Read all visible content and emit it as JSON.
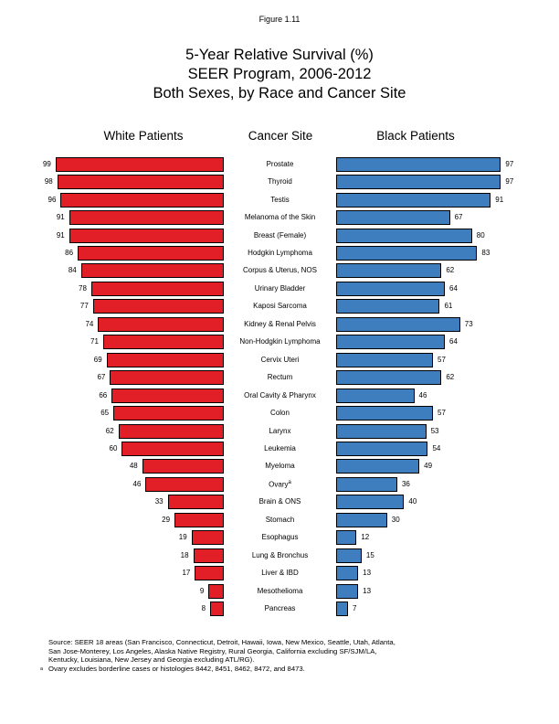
{
  "figure_label": "Figure 1.11",
  "title_lines": [
    "5-Year Relative Survival (%)",
    "SEER Program, 2006-2012",
    "Both Sexes, by Race and Cancer Site"
  ],
  "column_headers": {
    "white": "White Patients",
    "site": "Cancer Site",
    "black": "Black Patients"
  },
  "colors": {
    "white_bar": "#e21f26",
    "black_bar": "#3e7dbe",
    "bar_border": "#000000"
  },
  "chart_data": {
    "type": "bar",
    "subtype": "diverging-horizontal",
    "title": "5-Year Relative Survival (%), SEER Program, 2006-2012, Both Sexes, by Race and Cancer Site",
    "categories": [
      "Prostate",
      "Thyroid",
      "Testis",
      "Melanoma of the Skin",
      "Breast (Female)",
      "Hodgkin Lymphoma",
      "Corpus & Uterus, NOS",
      "Urinary Bladder",
      "Kaposi Sarcoma",
      "Kidney & Renal Pelvis",
      "Non-Hodgkin Lymphoma",
      "Cervix Uteri",
      "Rectum",
      "Oral Cavity & Pharynx",
      "Colon",
      "Larynx",
      "Leukemia",
      "Myeloma",
      "Ovary",
      "Brain & ONS",
      "Stomach",
      "Esophagus",
      "Lung & Bronchus",
      "Liver & IBD",
      "Mesothelioma",
      "Pancreas"
    ],
    "series": [
      {
        "name": "White Patients",
        "values": [
          99,
          98,
          96,
          91,
          91,
          86,
          84,
          78,
          77,
          74,
          71,
          69,
          67,
          66,
          65,
          62,
          60,
          48,
          46,
          33,
          29,
          19,
          18,
          17,
          9,
          8
        ]
      },
      {
        "name": "Black Patients",
        "values": [
          97,
          97,
          91,
          67,
          80,
          83,
          62,
          64,
          61,
          73,
          64,
          57,
          62,
          46,
          57,
          53,
          54,
          49,
          36,
          40,
          30,
          12,
          15,
          13,
          13,
          7
        ]
      }
    ],
    "xlim": [
      0,
      100
    ],
    "value_labels": true,
    "legend": "none",
    "grid": false,
    "footnote_marker": "a",
    "footnote_category": "Ovary"
  },
  "source_lines": [
    "Source: SEER 18 areas (San Francisco, Connecticut, Detroit, Hawaii, Iowa, New Mexico, Seattle, Utah, Atlanta,",
    "San Jose-Monterey, Los Angeles, Alaska Native Registry, Rural Georgia, California excluding SF/SJM/LA,",
    "Kentucky, Louisiana, New Jersey and Georgia excluding ATL/RG)."
  ],
  "footnote": {
    "marker": "a",
    "text": "Ovary excludes borderline cases or histologies 8442, 8451, 8462, 8472, and 8473."
  }
}
